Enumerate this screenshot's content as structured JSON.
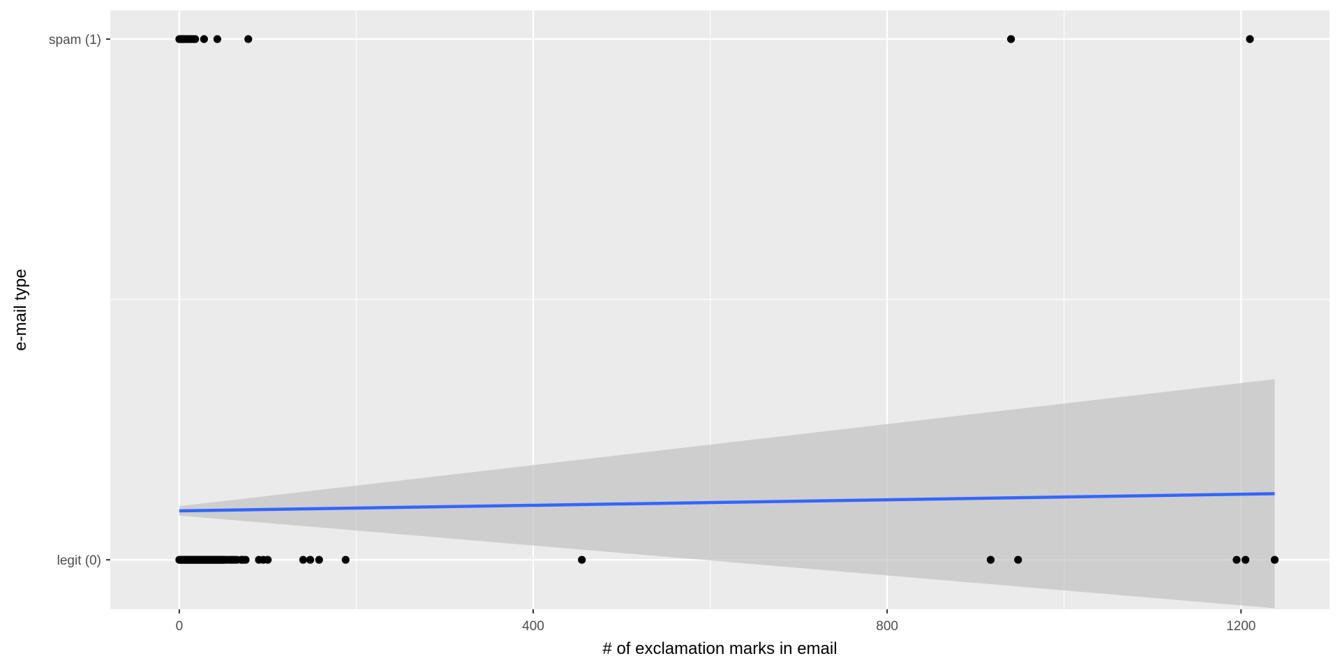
{
  "chart_data": {
    "type": "scatter",
    "title": "",
    "xlabel": "# of exclamation marks in email",
    "ylabel": "e-mail type",
    "xlim": [
      -78,
      1300
    ],
    "ylim": [
      -0.095,
      1.055
    ],
    "grid": true,
    "x_ticks": [
      0,
      400,
      800,
      1200
    ],
    "x_tick_labels": [
      "0",
      "400",
      "800",
      "1200"
    ],
    "x_minor_ticks": [
      200,
      600,
      1000
    ],
    "y_ticks": [
      0,
      1
    ],
    "y_tick_labels": [
      "legit (0)",
      "spam (1)"
    ],
    "y_minor_ticks": [
      0.5
    ],
    "points": {
      "spam": {
        "y": 1,
        "x": [
          0,
          1,
          2,
          3,
          4,
          5,
          6,
          8,
          10,
          12,
          14,
          16,
          18,
          28,
          43,
          78,
          940,
          1210
        ]
      },
      "legit": {
        "y": 0,
        "x": [
          0,
          1,
          2,
          3,
          4,
          5,
          6,
          7,
          8,
          9,
          10,
          11,
          12,
          13,
          14,
          15,
          16,
          17,
          18,
          19,
          20,
          21,
          22,
          23,
          24,
          25,
          26,
          27,
          28,
          29,
          30,
          31,
          32,
          33,
          34,
          35,
          36,
          37,
          38,
          39,
          40,
          41,
          42,
          43,
          44,
          45,
          46,
          47,
          48,
          49,
          50,
          52,
          55,
          58,
          60,
          62,
          65,
          70,
          72,
          75,
          90,
          95,
          100,
          140,
          148,
          158,
          188,
          455,
          917,
          948,
          1195,
          1205,
          1238
        ]
      }
    },
    "fit": {
      "method": "lm",
      "x_range": [
        0,
        1238
      ],
      "y_start": 0.094,
      "y_end": 0.127,
      "ci_low_start": 0.085,
      "ci_low_end": -0.093,
      "ci_high_start": 0.103,
      "ci_high_end": 0.347
    },
    "colors": {
      "panel_background": "#ebebeb",
      "grid_major": "#ffffff",
      "point": "#000000",
      "fit_line": "#3366ff",
      "ci_ribbon": "#bfbfbf"
    }
  }
}
